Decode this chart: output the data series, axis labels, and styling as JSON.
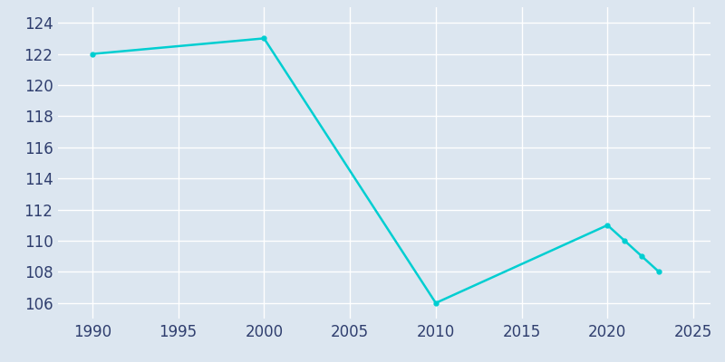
{
  "years": [
    1990,
    2000,
    2010,
    2020,
    2021,
    2022,
    2023
  ],
  "population": [
    122,
    123,
    106,
    111,
    110,
    109,
    108
  ],
  "line_color": "#00CED1",
  "marker": "o",
  "marker_size": 3.5,
  "bg_color": "#dce6f0",
  "plot_bg_color": "#dce6f0",
  "grid_color": "#ffffff",
  "xlim": [
    1988,
    2026
  ],
  "ylim": [
    105,
    125
  ],
  "xticks": [
    1990,
    1995,
    2000,
    2005,
    2010,
    2015,
    2020,
    2025
  ],
  "yticks": [
    106,
    108,
    110,
    112,
    114,
    116,
    118,
    120,
    122,
    124
  ],
  "tick_color": "#2f3e6e",
  "tick_fontsize": 12,
  "linewidth": 1.8
}
